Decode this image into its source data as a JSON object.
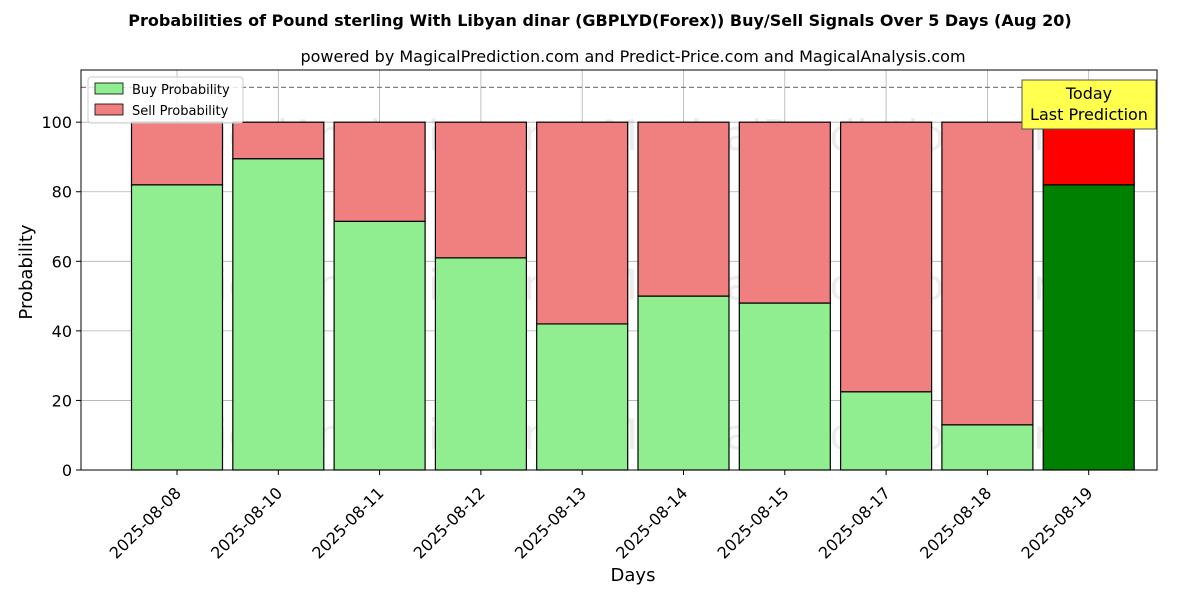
{
  "chart_data": {
    "type": "bar",
    "title": "Probabilities of Pound sterling With Libyan dinar (GBPLYD(Forex)) Buy/Sell Signals Over 5 Days (Aug 20)",
    "subtitle": "powered by MagicalPrediction.com and Predict-Price.com and MagicalAnalysis.com",
    "xlabel": "Days",
    "ylabel": "Probability",
    "ylim": [
      0,
      115
    ],
    "yticks": [
      0,
      20,
      40,
      60,
      80,
      100
    ],
    "reference_line": 110,
    "grid": true,
    "legend_position": "top-left",
    "categories": [
      "2025-08-08",
      "2025-08-10",
      "2025-08-11",
      "2025-08-12",
      "2025-08-13",
      "2025-08-14",
      "2025-08-15",
      "2025-08-17",
      "2025-08-18",
      "2025-08-19"
    ],
    "series": [
      {
        "name": "Buy Probability",
        "values": [
          82,
          89.5,
          71.5,
          61,
          42,
          50,
          48,
          22.5,
          13,
          82
        ]
      },
      {
        "name": "Sell Probability",
        "values": [
          18,
          10.5,
          28.5,
          39,
          58,
          50,
          52,
          77.5,
          87,
          18
        ]
      }
    ],
    "colors": {
      "buy": "#90ee90",
      "sell": "#f08080",
      "buy_today": "#008000",
      "sell_today": "#ff0000",
      "annotation_bg": "#ffff4d"
    },
    "annotation": {
      "line1": "Today",
      "line2": "Last Prediction"
    },
    "watermarks": [
      "MagicalAnalysis.com",
      "MagicalPrediction.com"
    ]
  }
}
